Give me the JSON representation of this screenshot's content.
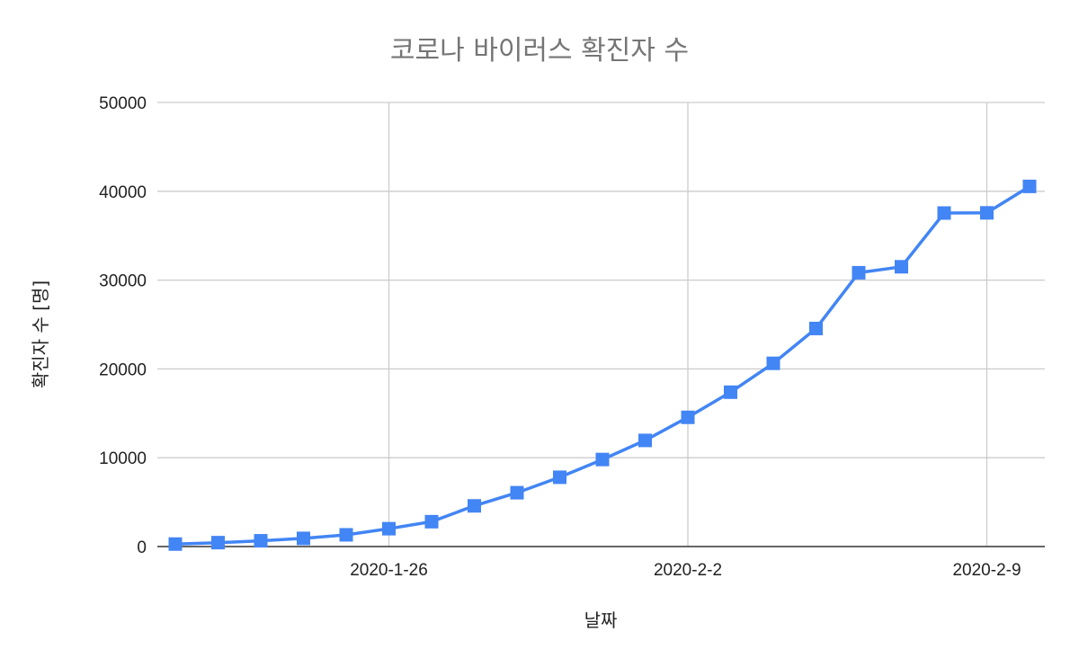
{
  "chart_data": {
    "type": "line",
    "title": "코로나 바이러스 확진자 수",
    "xlabel": "날짜",
    "ylabel": "확진자 수 [명]",
    "x": [
      "2020-1-21",
      "2020-1-22",
      "2020-1-23",
      "2020-1-24",
      "2020-1-25",
      "2020-1-26",
      "2020-1-27",
      "2020-1-28",
      "2020-1-29",
      "2020-1-30",
      "2020-1-31",
      "2020-2-1",
      "2020-2-2",
      "2020-2-3",
      "2020-2-4",
      "2020-2-5",
      "2020-2-6",
      "2020-2-7",
      "2020-2-8",
      "2020-2-9",
      "2020-2-10"
    ],
    "x_ticks": [
      "2020-1-26",
      "2020-2-2",
      "2020-2-9"
    ],
    "y_ticks": [
      0,
      10000,
      20000,
      30000,
      40000,
      50000
    ],
    "ylim": [
      0,
      50000
    ],
    "grid": true,
    "legend": "none",
    "series": [
      {
        "values": [
          280,
          440,
          650,
          920,
          1320,
          2010,
          2800,
          4580,
          6060,
          7800,
          9800,
          11950,
          14550,
          17380,
          20630,
          24550,
          30830,
          31500,
          37550,
          37570,
          40550
        ],
        "color": "#4285f4",
        "marker": "square"
      }
    ]
  }
}
